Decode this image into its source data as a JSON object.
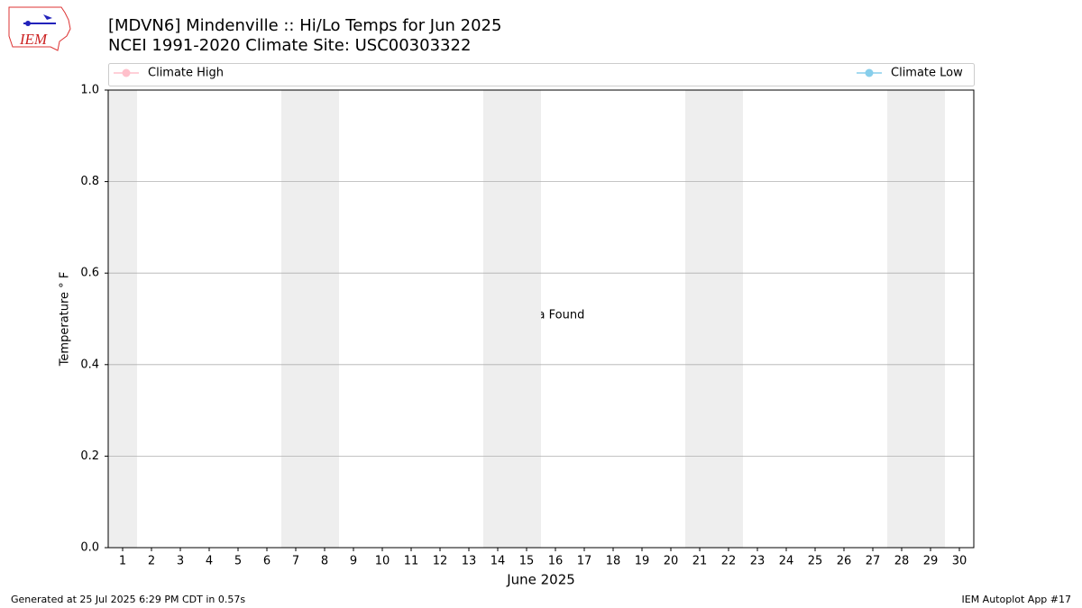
{
  "chart_data": {
    "type": "line",
    "logo_text": "IEM",
    "title": "[MDVN6] Mindenville :: Hi/Lo Temps for Jun 2025",
    "subtitle": "NCEI 1991-2020 Climate Site: USC00303322",
    "x_label": "June 2025",
    "y_label": "Temperature ° F",
    "annotation": "No Data Found",
    "footer_left": "Generated at 25 Jul 2025 6:29 PM CDT in 0.57s",
    "footer_right": "IEM Autoplot App #17",
    "x": [
      1,
      2,
      3,
      4,
      5,
      6,
      7,
      8,
      9,
      10,
      11,
      12,
      13,
      14,
      15,
      16,
      17,
      18,
      19,
      20,
      21,
      22,
      23,
      24,
      25,
      26,
      27,
      28,
      29,
      30
    ],
    "series": [
      {
        "name": "Climate High",
        "color": "#ffc0cb",
        "values": [
          null,
          null,
          null,
          null,
          null,
          null,
          null,
          null,
          null,
          null,
          null,
          null,
          null,
          null,
          null,
          null,
          null,
          null,
          null,
          null,
          null,
          null,
          null,
          null,
          null,
          null,
          null,
          null,
          null,
          null
        ]
      },
      {
        "name": "Climate Low",
        "color": "#87ceeb",
        "values": [
          null,
          null,
          null,
          null,
          null,
          null,
          null,
          null,
          null,
          null,
          null,
          null,
          null,
          null,
          null,
          null,
          null,
          null,
          null,
          null,
          null,
          null,
          null,
          null,
          null,
          null,
          null,
          null,
          null,
          null
        ]
      }
    ],
    "xlim": [
      0.5,
      30.5
    ],
    "xticks": [
      1,
      2,
      3,
      4,
      5,
      6,
      7,
      8,
      9,
      10,
      11,
      12,
      13,
      14,
      15,
      16,
      17,
      18,
      19,
      20,
      21,
      22,
      23,
      24,
      25,
      26,
      27,
      28,
      29,
      30
    ],
    "ylim": [
      0,
      1
    ],
    "yticks": [
      {
        "value": 0,
        "label": "0.0"
      },
      0.2,
      0.4,
      0.6,
      0.8,
      {
        "value": 1,
        "label": "1.0"
      }
    ],
    "grid": true,
    "shaded_spans": [
      [
        0.5,
        1.5
      ],
      [
        6.5,
        8.5
      ],
      [
        13.5,
        15.5
      ],
      [
        20.5,
        22.5
      ],
      [
        27.5,
        29.5
      ]
    ],
    "shade_color": "#eeeeee"
  }
}
